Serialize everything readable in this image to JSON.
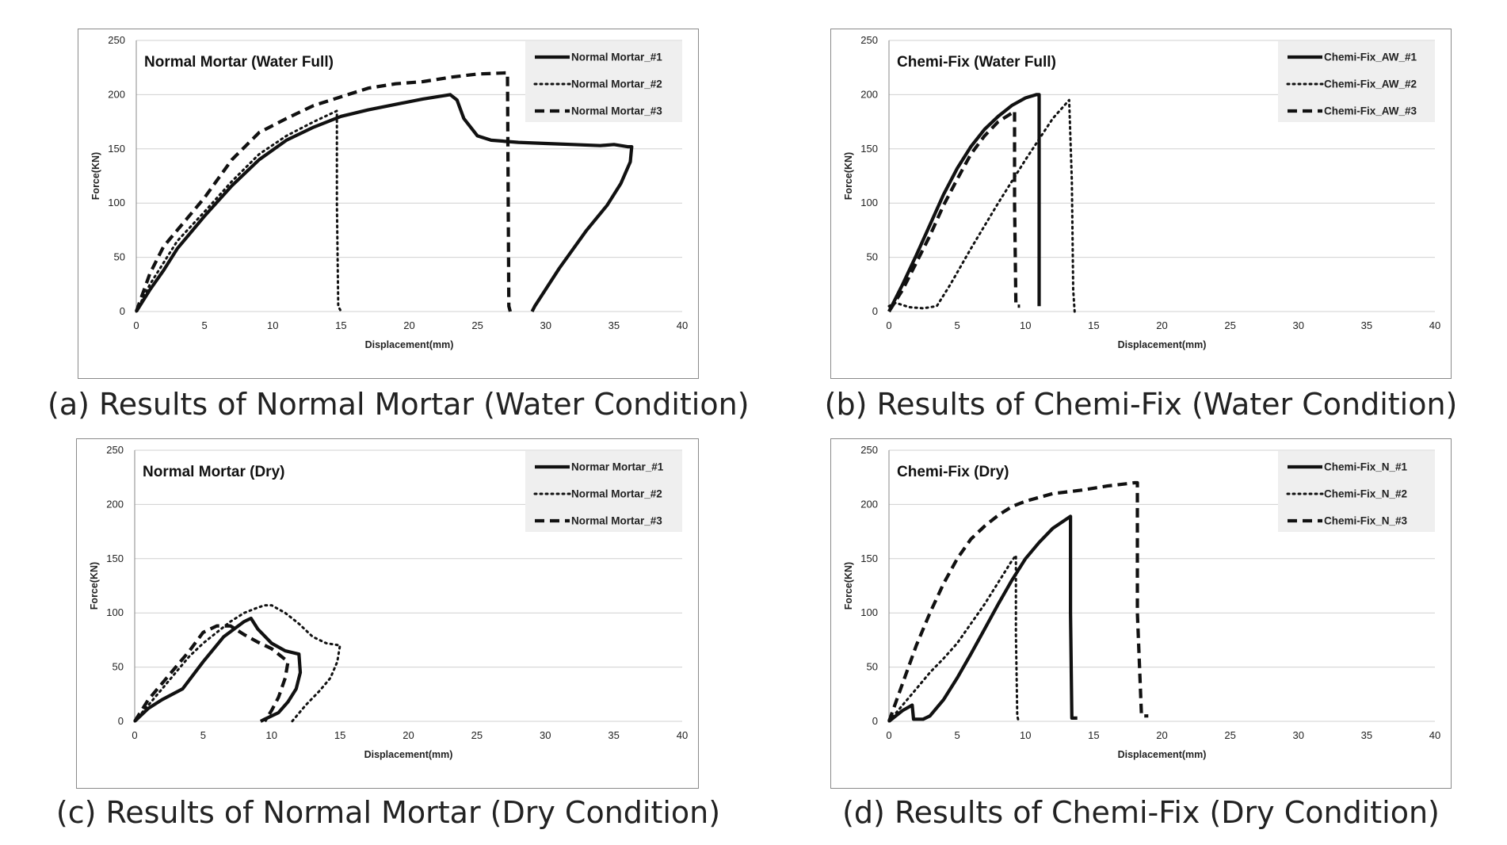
{
  "charts": [
    {
      "caption": "(a) Results of Normal Mortar (Water Condition)",
      "title": "Normal Mortar (Water Full)",
      "xlabel": "Displacement(mm)",
      "ylabel": "Force(KN)",
      "legend_bg": "#efefef",
      "series_names": [
        "Normal Mortar_#1",
        "Normal Mortar_#2",
        "Normal Mortar_#3"
      ]
    },
    {
      "caption": "(b) Results of Chemi-Fix (Water Condition)",
      "title": "Chemi-Fix (Water Full)",
      "xlabel": "Displacement(mm)",
      "ylabel": "Force(KN)",
      "legend_bg": "#efefef",
      "series_names": [
        "Chemi-Fix_AW_#1",
        "Chemi-Fix_AW_#2",
        "Chemi-Fix_AW_#3"
      ]
    },
    {
      "caption": "(c) Results of Normal Mortar (Dry Condition)",
      "title": "Normal Mortar (Dry)",
      "xlabel": "Displacement(mm)",
      "ylabel": "Force(KN)",
      "legend_bg": "#efefef",
      "series_names": [
        "Normar Mortar_#1",
        "Normal Mortar_#2",
        "Normal Mortar_#3"
      ]
    },
    {
      "caption": "(d) Results of Chemi-Fix (Dry Condition)",
      "title": "Chemi-Fix (Dry)",
      "xlabel": "Displacement(mm)",
      "ylabel": "Force(KN)",
      "legend_bg": "#efefef",
      "series_names": [
        "Chemi-Fix_N_#1",
        "Chemi-Fix_N_#2",
        "Chemi-Fix_N_#3"
      ]
    }
  ],
  "chart_data": [
    {
      "type": "line",
      "title": "Normal Mortar (Water Full)",
      "xlabel": "Displacement(mm)",
      "ylabel": "Force(KN)",
      "xlim": [
        0,
        40
      ],
      "ylim": [
        0,
        250
      ],
      "xticks": [
        0,
        5,
        10,
        15,
        20,
        25,
        30,
        35,
        40
      ],
      "yticks": [
        0,
        50,
        100,
        150,
        200,
        250
      ],
      "grid": "horizontal",
      "legend": "top-right",
      "series": [
        {
          "name": "Normal Mortar_#1",
          "style": "solid",
          "x": [
            0,
            1,
            2,
            3,
            5,
            7,
            9,
            11,
            13,
            15,
            17,
            19,
            21,
            23,
            23.5,
            24,
            25,
            26,
            28,
            30,
            32,
            34,
            35,
            36,
            36.3,
            36.2,
            35.5,
            34.5,
            33,
            31,
            29.2,
            29
          ],
          "y": [
            0,
            20,
            38,
            58,
            88,
            116,
            140,
            158,
            170,
            180,
            186,
            191,
            196,
            200,
            195,
            178,
            162,
            158,
            156,
            155,
            154,
            153,
            154,
            152,
            152,
            138,
            118,
            98,
            75,
            40,
            5,
            0
          ]
        },
        {
          "name": "Normal Mortar_#2",
          "style": "dotted",
          "x": [
            0,
            1,
            2,
            3,
            5,
            7,
            9,
            11,
            13,
            14.7,
            14.7,
            14.8,
            15
          ],
          "y": [
            0,
            25,
            45,
            65,
            92,
            120,
            145,
            162,
            175,
            185,
            100,
            5,
            0
          ]
        },
        {
          "name": "Normal Mortar_#3",
          "style": "dashed",
          "x": [
            0,
            1,
            2,
            3,
            5,
            7,
            9,
            11,
            13,
            15,
            17,
            19,
            21,
            23,
            25,
            27,
            27.2,
            27.3,
            27.4
          ],
          "y": [
            0,
            35,
            60,
            75,
            105,
            140,
            165,
            178,
            190,
            198,
            206,
            210,
            212,
            216,
            219,
            220,
            220,
            5,
            0
          ]
        }
      ]
    },
    {
      "type": "line",
      "title": "Chemi-Fix (Water Full)",
      "xlabel": "Displacement(mm)",
      "ylabel": "Force(KN)",
      "xlim": [
        0,
        40
      ],
      "ylim": [
        0,
        250
      ],
      "xticks": [
        0,
        5,
        10,
        15,
        20,
        25,
        30,
        35,
        40
      ],
      "yticks": [
        0,
        50,
        100,
        150,
        200,
        250
      ],
      "grid": "horizontal",
      "legend": "top-right",
      "series": [
        {
          "name": "Chemi-Fix_AW_#1",
          "style": "solid",
          "x": [
            0,
            1,
            2,
            3,
            4,
            5,
            6,
            7,
            8,
            9,
            10,
            10.8,
            11,
            11,
            11
          ],
          "y": [
            0,
            25,
            52,
            80,
            108,
            132,
            152,
            168,
            180,
            190,
            197,
            200,
            200,
            100,
            5
          ]
        },
        {
          "name": "Chemi-Fix_AW_#2",
          "style": "dotted",
          "x": [
            0,
            0.5,
            1.5,
            2.5,
            3.5,
            4.5,
            6,
            8,
            10,
            12,
            13.2,
            13.4,
            13.5,
            13.6
          ],
          "y": [
            5,
            8,
            4,
            3,
            5,
            25,
            58,
            100,
            140,
            178,
            195,
            120,
            20,
            0
          ]
        },
        {
          "name": "Chemi-Fix_AW_#3",
          "style": "dashed",
          "x": [
            0,
            1,
            2,
            3,
            4,
            5,
            6,
            7,
            8,
            9,
            9.2,
            9.2,
            9.3,
            9.6
          ],
          "y": [
            0,
            20,
            45,
            70,
            98,
            122,
            145,
            162,
            175,
            183,
            185,
            100,
            5,
            5
          ]
        }
      ]
    },
    {
      "type": "line",
      "title": "Normal Mortar (Dry)",
      "xlabel": "Displacement(mm)",
      "ylabel": "Force(KN)",
      "xlim": [
        0,
        40
      ],
      "ylim": [
        0,
        250
      ],
      "xticks": [
        0,
        5,
        10,
        15,
        20,
        25,
        30,
        35,
        40
      ],
      "yticks": [
        0,
        50,
        100,
        150,
        200,
        250
      ],
      "grid": "horizontal",
      "legend": "top-right",
      "series": [
        {
          "name": "Normar Mortar_#1",
          "style": "solid",
          "x": [
            0,
            1,
            2,
            3.5,
            5,
            6.5,
            8,
            8.5,
            9,
            10,
            11,
            12,
            12.1,
            11.8,
            11.2,
            10.5,
            9.5,
            9.2
          ],
          "y": [
            0,
            12,
            20,
            30,
            55,
            78,
            92,
            95,
            85,
            72,
            65,
            62,
            45,
            30,
            18,
            8,
            2,
            0
          ]
        },
        {
          "name": "Normal Mortar_#2",
          "style": "dotted",
          "x": [
            0,
            1,
            2,
            3,
            4,
            5,
            6,
            7,
            8,
            9,
            9.5,
            10,
            11,
            12,
            13,
            14,
            15,
            14.8,
            14.3,
            13.5,
            12.5,
            11.5
          ],
          "y": [
            0,
            15,
            30,
            45,
            60,
            72,
            82,
            92,
            100,
            105,
            107,
            107,
            100,
            90,
            78,
            72,
            70,
            55,
            40,
            28,
            15,
            0
          ]
        },
        {
          "name": "Normal Mortar_#3",
          "style": "dashed",
          "x": [
            0,
            1,
            2,
            3,
            4,
            5,
            6,
            7,
            8,
            9,
            10,
            11,
            11.2,
            11,
            10.5,
            10,
            9.5
          ],
          "y": [
            0,
            20,
            35,
            50,
            65,
            82,
            88,
            88,
            80,
            73,
            67,
            57,
            55,
            40,
            22,
            10,
            0
          ]
        }
      ]
    },
    {
      "type": "line",
      "title": "Chemi-Fix (Dry)",
      "xlabel": "Displacement(mm)",
      "ylabel": "Force(KN)",
      "xlim": [
        0,
        40
      ],
      "ylim": [
        0,
        250
      ],
      "xticks": [
        0,
        5,
        10,
        15,
        20,
        25,
        30,
        35,
        40
      ],
      "yticks": [
        0,
        50,
        100,
        150,
        200,
        250
      ],
      "grid": "horizontal",
      "legend": "top-right",
      "series": [
        {
          "name": "Chemi-Fix_N_#1",
          "style": "solid",
          "x": [
            0,
            1,
            1.7,
            1.8,
            2.5,
            3,
            4,
            5,
            6,
            7,
            8,
            9,
            10,
            11,
            12,
            13.3,
            13.3,
            13.4,
            13.8
          ],
          "y": [
            0,
            10,
            15,
            2,
            2,
            5,
            20,
            40,
            62,
            85,
            108,
            130,
            150,
            165,
            178,
            189,
            100,
            3,
            3
          ]
        },
        {
          "name": "Chemi-Fix_N_#2",
          "style": "dotted",
          "x": [
            0,
            1,
            2,
            3,
            4,
            5,
            6,
            7,
            8,
            9,
            9.3,
            9.3,
            9.4,
            9.5
          ],
          "y": [
            0,
            15,
            30,
            45,
            58,
            72,
            90,
            108,
            128,
            148,
            153,
            80,
            5,
            0
          ]
        },
        {
          "name": "Chemi-Fix_N_#3",
          "style": "dashed",
          "x": [
            0,
            1,
            2,
            3,
            4,
            5,
            6,
            7,
            8,
            9,
            10,
            12,
            14,
            16,
            18,
            18.2,
            18.2,
            18.5,
            19
          ],
          "y": [
            0,
            35,
            70,
            100,
            127,
            150,
            168,
            180,
            190,
            198,
            203,
            210,
            213,
            217,
            220,
            220,
            100,
            5,
            5
          ]
        }
      ]
    }
  ]
}
